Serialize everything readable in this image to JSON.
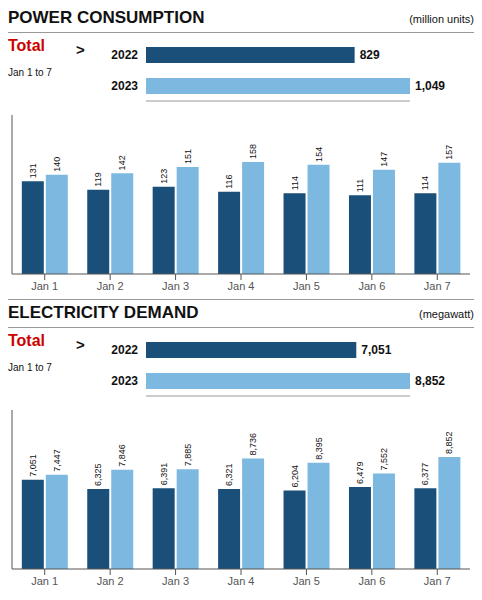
{
  "chart_data": [
    {
      "type": "bar",
      "title": "POWER CONSUMPTION",
      "subtitle": "(million units)",
      "annotations": [
        {
          "text": "Total",
          "color": "#cc0000"
        },
        {
          "text": "Jan 1 to 7"
        },
        {
          "text": ">"
        }
      ],
      "orientation": "horizontal",
      "categories": [
        "2022",
        "2023"
      ],
      "values": [
        829,
        1049
      ],
      "value_labels": [
        "829",
        "1,049"
      ],
      "colors": [
        "#1a4f7a",
        "#7db8e0"
      ],
      "xlim": [
        0,
        1049
      ],
      "data_labels": true,
      "tick_labels": "y"
    },
    {
      "type": "bar",
      "categories": [
        "Jan 1",
        "Jan 2",
        "Jan 3",
        "Jan 4",
        "Jan 5",
        "Jan 6",
        "Jan 7"
      ],
      "series": [
        {
          "color": "#1a4f7a",
          "values": [
            131,
            119,
            123,
            116,
            114,
            111,
            114
          ]
        },
        {
          "color": "#7db8e0",
          "values": [
            140,
            142,
            151,
            158,
            154,
            147,
            157
          ]
        }
      ],
      "ylim": [
        0,
        224.36
      ],
      "data_labels": true,
      "tick_labels": "x"
    },
    {
      "type": "bar",
      "title": "ELECTRICITY DEMAND",
      "subtitle": "(megawatt)",
      "annotations": [
        {
          "text": "Total",
          "color": "#cc0000"
        },
        {
          "text": "Jan 1 to 7"
        },
        {
          "text": ">"
        }
      ],
      "orientation": "horizontal",
      "categories": [
        "2022",
        "2023"
      ],
      "values": [
        7051,
        8852
      ],
      "value_labels": [
        "7,051",
        "8,852"
      ],
      "colors": [
        "#1a4f7a",
        "#7db8e0"
      ],
      "xlim": [
        0,
        8852
      ],
      "data_labels": true,
      "tick_labels": "y"
    },
    {
      "type": "bar",
      "categories": [
        "Jan 1",
        "Jan 2",
        "Jan 3",
        "Jan 4",
        "Jan 5",
        "Jan 6",
        "Jan 7"
      ],
      "series": [
        {
          "color": "#1a4f7a",
          "values": [
            7051,
            6325,
            6391,
            6321,
            6204,
            6479,
            6377
          ],
          "value_labels": [
            "7,051",
            "6,325",
            "6,391",
            "6,321",
            "6,204",
            "6,479",
            "6,377"
          ]
        },
        {
          "color": "#7db8e0",
          "values": [
            7447,
            7846,
            7885,
            8736,
            8395,
            7552,
            8852
          ],
          "value_labels": [
            "7,447",
            "7,846",
            "7,885",
            "8,736",
            "8,395",
            "7,552",
            "8,852"
          ]
        }
      ],
      "ylim": [
        0,
        12569.84
      ],
      "data_labels": true,
      "tick_labels": "x"
    }
  ]
}
